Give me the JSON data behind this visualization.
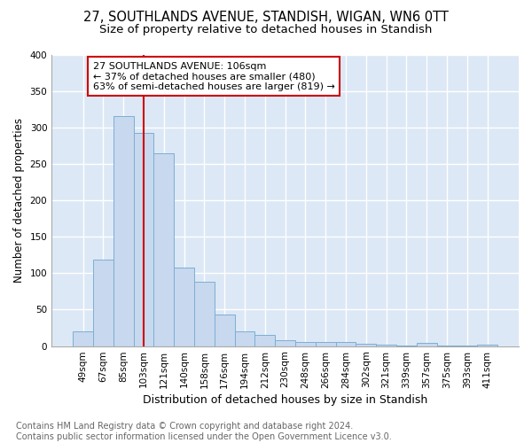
{
  "title1": "27, SOUTHLANDS AVENUE, STANDISH, WIGAN, WN6 0TT",
  "title2": "Size of property relative to detached houses in Standish",
  "xlabel": "Distribution of detached houses by size in Standish",
  "ylabel": "Number of detached properties",
  "categories": [
    "49sqm",
    "67sqm",
    "85sqm",
    "103sqm",
    "121sqm",
    "140sqm",
    "158sqm",
    "176sqm",
    "194sqm",
    "212sqm",
    "230sqm",
    "248sqm",
    "266sqm",
    "284sqm",
    "302sqm",
    "321sqm",
    "339sqm",
    "357sqm",
    "375sqm",
    "393sqm",
    "411sqm"
  ],
  "values": [
    20,
    118,
    315,
    293,
    265,
    108,
    88,
    43,
    20,
    15,
    8,
    6,
    5,
    5,
    3,
    2,
    1,
    4,
    1,
    1,
    2
  ],
  "bar_color": "#c8d8ee",
  "bar_edge_color": "#7bafd4",
  "vline_x": 3.0,
  "vline_color": "#cc0000",
  "annotation_line1": "27 SOUTHLANDS AVENUE: 106sqm",
  "annotation_line2": "← 37% of detached houses are smaller (480)",
  "annotation_line3": "63% of semi-detached houses are larger (819) →",
  "annotation_box_color": "#ffffff",
  "annotation_box_edge": "#cc0000",
  "footnote": "Contains HM Land Registry data © Crown copyright and database right 2024.\nContains public sector information licensed under the Open Government Licence v3.0.",
  "ylim": [
    0,
    400
  ],
  "yticks": [
    0,
    50,
    100,
    150,
    200,
    250,
    300,
    350,
    400
  ],
  "plot_bg_color": "#dce8f5",
  "fig_bg_color": "#ffffff",
  "grid_color": "#ffffff",
  "title1_fontsize": 10.5,
  "title2_fontsize": 9.5,
  "xlabel_fontsize": 9,
  "ylabel_fontsize": 8.5,
  "tick_fontsize": 7.5,
  "annotation_fontsize": 8,
  "footnote_fontsize": 7
}
